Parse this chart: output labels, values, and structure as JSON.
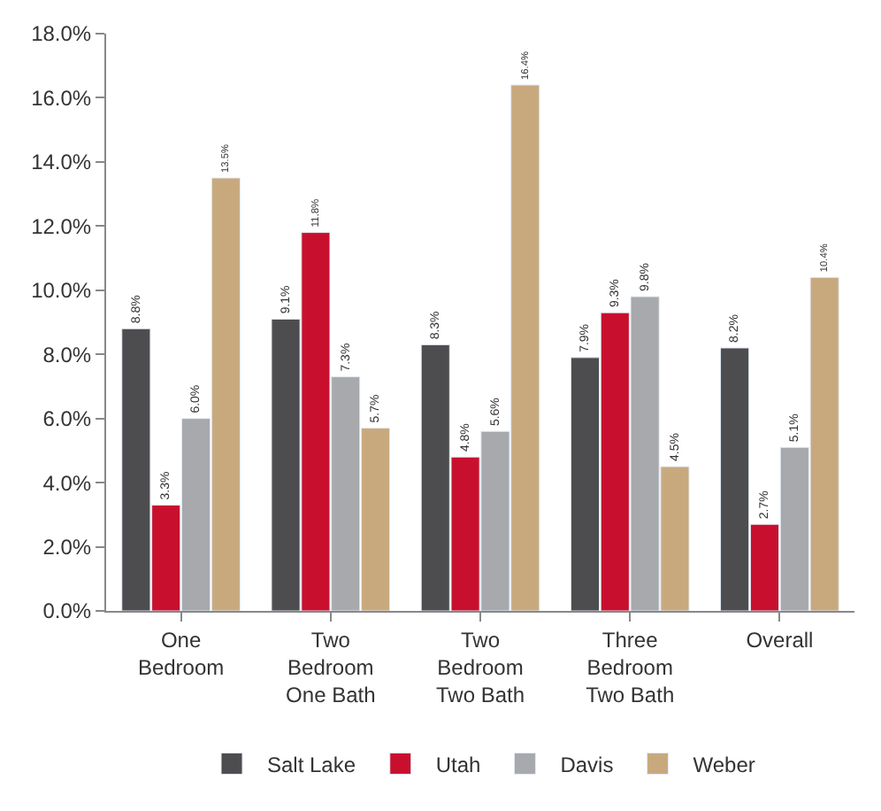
{
  "chart_data": {
    "type": "bar",
    "categories": [
      "One\nBedroom",
      "Two\nBedroom\nOne Bath",
      "Two\nBedroom\nTwo Bath",
      "Three\nBedroom\nTwo Bath",
      "Overall"
    ],
    "series": [
      {
        "name": "Salt Lake",
        "color": "#4d4d4f",
        "values": [
          8.8,
          9.1,
          8.3,
          7.9,
          8.2
        ],
        "value_labels": [
          "8.8%",
          "9.1%",
          "8.3%",
          "7.9%",
          "8.2%"
        ]
      },
      {
        "name": "Utah",
        "color": "#c8102e",
        "values": [
          3.3,
          11.8,
          4.8,
          9.3,
          2.7
        ],
        "value_labels": [
          "3.3%",
          "11.8%",
          "4.8%",
          "9.3%",
          "2.7%"
        ]
      },
      {
        "name": "Davis",
        "color": "#a7a9ac",
        "values": [
          6.0,
          7.3,
          5.6,
          9.8,
          5.1
        ],
        "value_labels": [
          "6.0%",
          "7.3%",
          "5.6%",
          "9.8%",
          "5.1%"
        ]
      },
      {
        "name": "Weber",
        "color": "#c8a97e",
        "values": [
          13.5,
          5.7,
          16.4,
          4.5,
          10.4
        ],
        "value_labels": [
          "13.5%",
          "5.7%",
          "16.4%",
          "4.5%",
          "10.4%"
        ]
      }
    ],
    "ylim": [
      0,
      18
    ],
    "yticks": [
      {
        "value": 0,
        "label": "0.0%"
      },
      {
        "value": 2,
        "label": "2.0%"
      },
      {
        "value": 4,
        "label": "4.0%"
      },
      {
        "value": 6,
        "label": "6.0%"
      },
      {
        "value": 8,
        "label": "8.0%"
      },
      {
        "value": 10,
        "label": "10.0%"
      },
      {
        "value": 12,
        "label": "12.0%"
      },
      {
        "value": 14,
        "label": "14.0%"
      },
      {
        "value": 16,
        "label": "16.0%"
      },
      {
        "value": 18,
        "label": "18.0%"
      }
    ],
    "legend": "bottom",
    "grid": false
  }
}
